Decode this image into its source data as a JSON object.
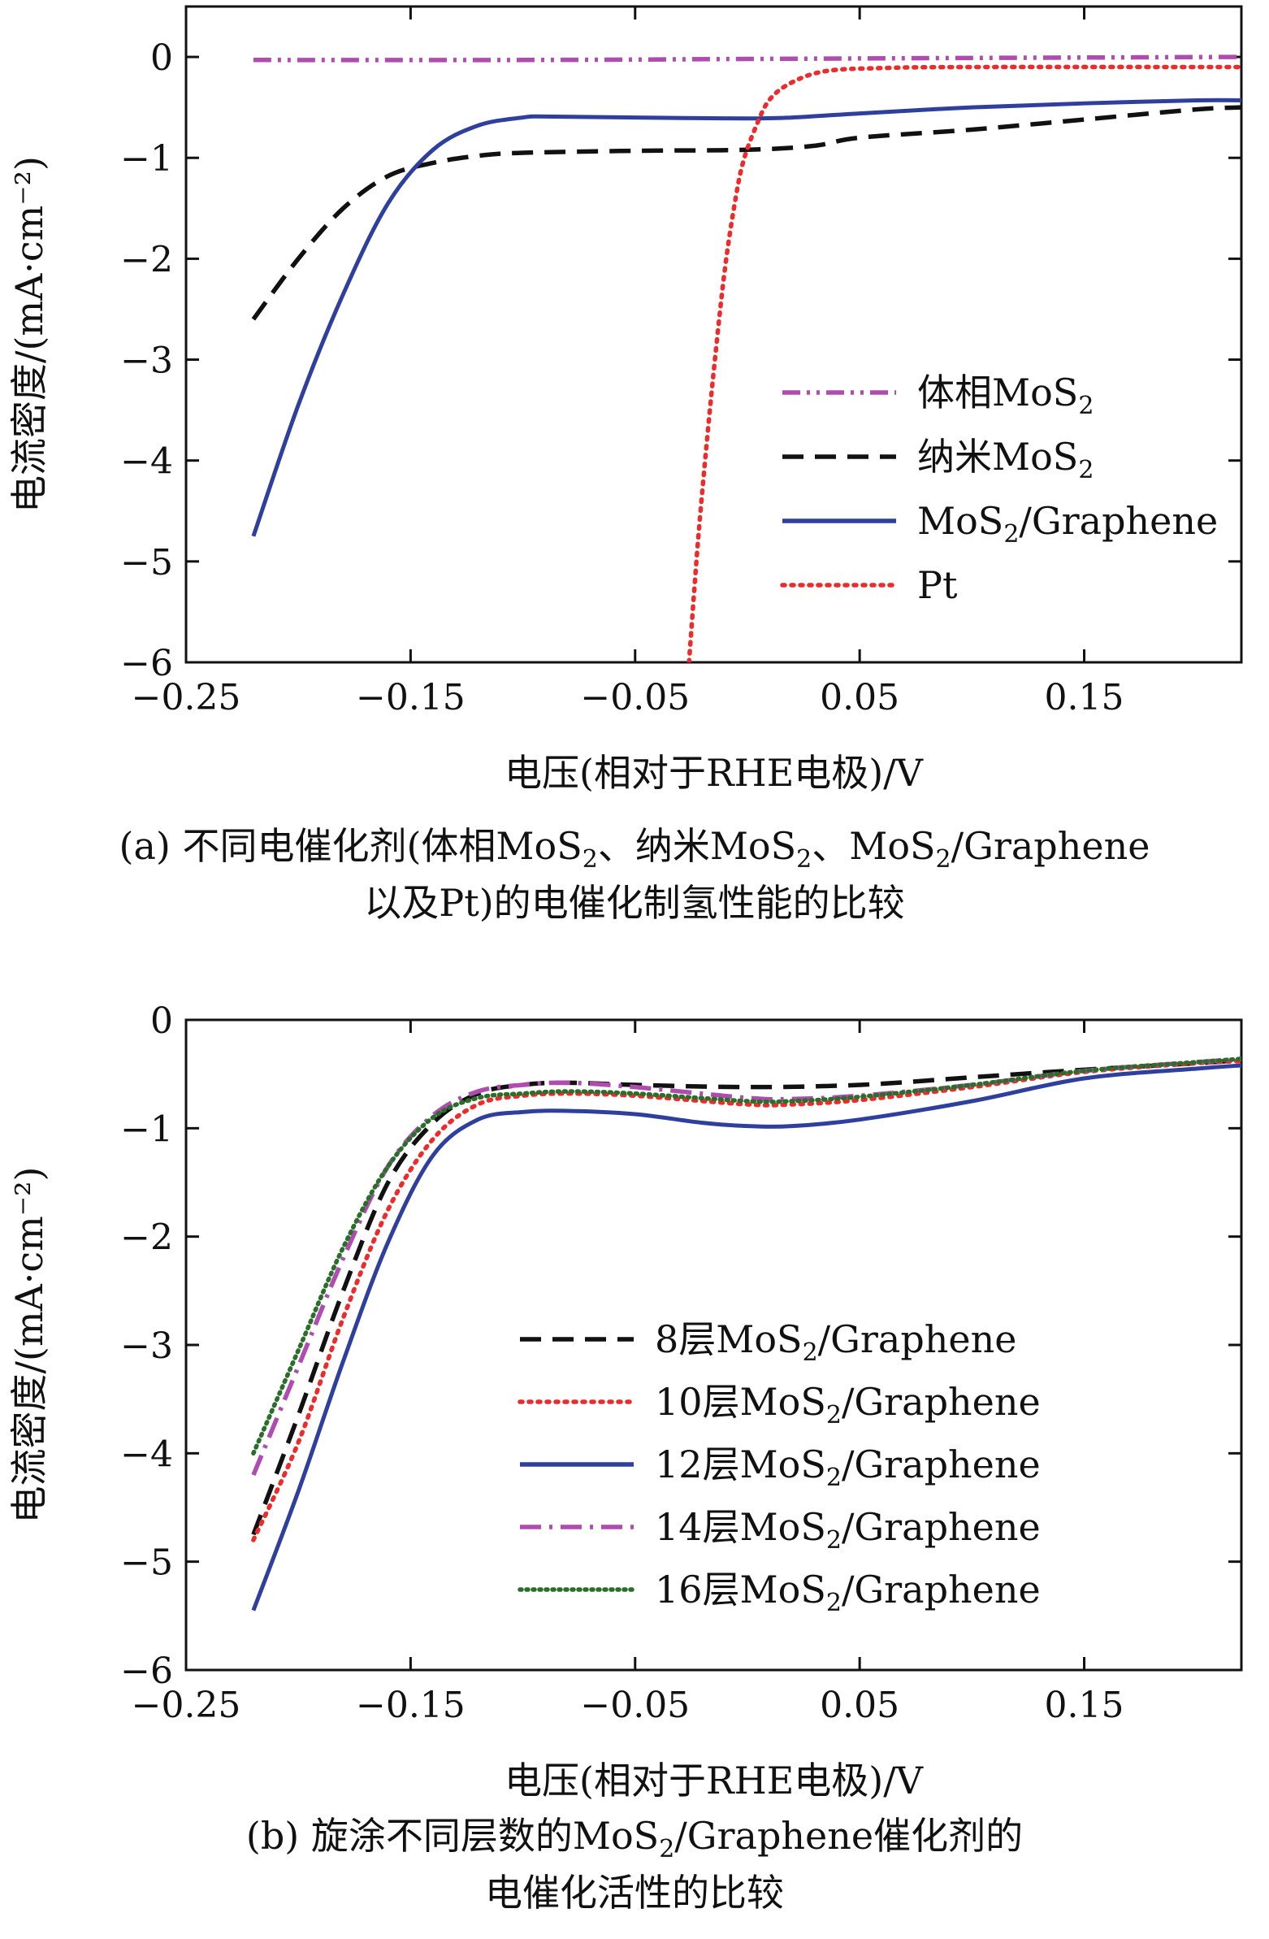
{
  "chart_data": [
    {
      "id": "a",
      "type": "line",
      "xlabel": "电压(相对于RHE电极)/V",
      "ylabel": "电流密度/(mA·cm⁻²)",
      "xlim": [
        -0.25,
        0.22
      ],
      "ylim": [
        -6,
        0.5
      ],
      "xticks": [
        -0.25,
        -0.15,
        -0.05,
        0.05,
        0.15
      ],
      "xtick_labels": [
        "−0.25",
        "−0.15",
        "−0.05",
        "0.05",
        "0.15"
      ],
      "yticks": [
        0,
        -1,
        -2,
        -3,
        -4,
        -5,
        -6
      ],
      "ytick_labels": [
        "0",
        "−1",
        "−2",
        "−3",
        "−4",
        "−5",
        "−6"
      ],
      "legend_position": "lower-right",
      "caption_line1": "(a) 不同电催化剂(体相MoS",
      "caption_mid1": "、纳米MoS",
      "caption_mid2": "、MoS",
      "caption_end": "/Graphene",
      "caption_sub": "2",
      "caption_line2": "以及Pt)的电催化制氢性能的比较",
      "series": [
        {
          "name": "体相MoS",
          "sub": "2",
          "color": "#b04cb0",
          "dash": "dashdotdot",
          "x": [
            -0.22,
            -0.1,
            0.0,
            0.1,
            0.22
          ],
          "y": [
            -0.03,
            -0.03,
            -0.02,
            -0.01,
            0.0
          ]
        },
        {
          "name": "纳米MoS",
          "sub": "2",
          "color": "#111111",
          "dash": "dash",
          "x": [
            -0.22,
            -0.2,
            -0.18,
            -0.16,
            -0.14,
            -0.12,
            -0.1,
            -0.05,
            0.0,
            0.03,
            0.05,
            0.1,
            0.15,
            0.2,
            0.22
          ],
          "y": [
            -2.6,
            -2.0,
            -1.5,
            -1.18,
            -1.05,
            -0.98,
            -0.95,
            -0.93,
            -0.92,
            -0.88,
            -0.8,
            -0.72,
            -0.62,
            -0.52,
            -0.5
          ]
        },
        {
          "name": "MoS",
          "sub": "2",
          "suffix": "/Graphene",
          "color": "#2e3f9e",
          "dash": "solid",
          "x": [
            -0.22,
            -0.2,
            -0.18,
            -0.16,
            -0.14,
            -0.12,
            -0.1,
            -0.09,
            -0.05,
            0.0,
            0.02,
            0.05,
            0.1,
            0.15,
            0.2,
            0.22
          ],
          "y": [
            -4.75,
            -3.45,
            -2.35,
            -1.45,
            -0.92,
            -0.68,
            -0.6,
            -0.59,
            -0.6,
            -0.61,
            -0.6,
            -0.56,
            -0.5,
            -0.46,
            -0.43,
            -0.43
          ]
        },
        {
          "name": "Pt",
          "color": "#ee2a2a",
          "dash": "dot",
          "x": [
            -0.026,
            -0.022,
            -0.018,
            -0.014,
            -0.01,
            -0.006,
            -0.002,
            0.004,
            0.01,
            0.02,
            0.035,
            0.06,
            0.1,
            0.22
          ],
          "y": [
            -6.0,
            -4.8,
            -3.8,
            -2.9,
            -2.1,
            -1.5,
            -1.05,
            -0.68,
            -0.42,
            -0.25,
            -0.14,
            -0.11,
            -0.1,
            -0.1
          ]
        }
      ]
    },
    {
      "id": "b",
      "type": "line",
      "xlabel": "电压(相对于RHE电极)/V",
      "ylabel": "电流密度/(mA·cm⁻²)",
      "xlim": [
        -0.25,
        0.22
      ],
      "ylim": [
        -6,
        0
      ],
      "xticks": [
        -0.25,
        -0.15,
        -0.05,
        0.05,
        0.15
      ],
      "xtick_labels": [
        "−0.25",
        "−0.15",
        "−0.05",
        "0.05",
        "0.15"
      ],
      "yticks": [
        0,
        -1,
        -2,
        -3,
        -4,
        -5,
        -6
      ],
      "ytick_labels": [
        "0",
        "−1",
        "−2",
        "−3",
        "−4",
        "−5",
        "−6"
      ],
      "legend_position": "lower-right",
      "caption_line1": "(b) 旋涂不同层数的MoS",
      "caption_end": "/Graphene催化剂的",
      "caption_sub": "2",
      "caption_line2": "电催化活性的比较",
      "series": [
        {
          "name": "8层MoS",
          "sub": "2",
          "suffix": "/Graphene",
          "color": "#111111",
          "dash": "dash",
          "x": [
            -0.22,
            -0.2,
            -0.18,
            -0.16,
            -0.14,
            -0.12,
            -0.1,
            -0.08,
            -0.05,
            0.0,
            0.05,
            0.1,
            0.15,
            0.2,
            0.22
          ],
          "y": [
            -4.75,
            -3.65,
            -2.5,
            -1.5,
            -0.95,
            -0.68,
            -0.6,
            -0.58,
            -0.6,
            -0.62,
            -0.6,
            -0.53,
            -0.46,
            -0.4,
            -0.37
          ]
        },
        {
          "name": "10层MoS",
          "sub": "2",
          "suffix": "/Graphene",
          "color": "#ee2a2a",
          "dash": "dot",
          "x": [
            -0.22,
            -0.2,
            -0.18,
            -0.16,
            -0.14,
            -0.12,
            -0.1,
            -0.08,
            -0.05,
            0.0,
            0.02,
            0.05,
            0.1,
            0.15,
            0.2,
            0.22
          ],
          "y": [
            -4.8,
            -3.9,
            -2.75,
            -1.75,
            -1.1,
            -0.78,
            -0.7,
            -0.68,
            -0.7,
            -0.78,
            -0.78,
            -0.74,
            -0.62,
            -0.48,
            -0.4,
            -0.38
          ]
        },
        {
          "name": "12层MoS",
          "sub": "2",
          "suffix": "/Graphene",
          "color": "#2e3f9e",
          "dash": "solid",
          "x": [
            -0.22,
            -0.2,
            -0.18,
            -0.16,
            -0.14,
            -0.12,
            -0.1,
            -0.08,
            -0.05,
            -0.02,
            0.0,
            0.02,
            0.05,
            0.1,
            0.15,
            0.2,
            0.22
          ],
          "y": [
            -5.45,
            -4.35,
            -3.15,
            -2.05,
            -1.25,
            -0.92,
            -0.85,
            -0.84,
            -0.87,
            -0.95,
            -0.98,
            -0.98,
            -0.92,
            -0.75,
            -0.54,
            -0.45,
            -0.42
          ]
        },
        {
          "name": "14层MoS",
          "sub": "2",
          "suffix": "/Graphene",
          "color": "#b04cb0",
          "dash": "dashdot",
          "x": [
            -0.22,
            -0.2,
            -0.18,
            -0.16,
            -0.14,
            -0.12,
            -0.1,
            -0.08,
            -0.05,
            0.0,
            0.02,
            0.05,
            0.1,
            0.15,
            0.2,
            0.22
          ],
          "y": [
            -4.2,
            -3.2,
            -2.2,
            -1.35,
            -0.88,
            -0.66,
            -0.6,
            -0.58,
            -0.62,
            -0.72,
            -0.73,
            -0.7,
            -0.6,
            -0.47,
            -0.39,
            -0.36
          ]
        },
        {
          "name": "16层MoS",
          "sub": "2",
          "suffix": "/Graphene",
          "color": "#2a6e2a",
          "dash": "finedot",
          "x": [
            -0.22,
            -0.2,
            -0.18,
            -0.16,
            -0.14,
            -0.12,
            -0.1,
            -0.08,
            -0.05,
            0.0,
            0.02,
            0.05,
            0.1,
            0.15,
            0.2,
            0.22
          ],
          "y": [
            -4.0,
            -3.05,
            -2.1,
            -1.35,
            -0.9,
            -0.72,
            -0.68,
            -0.66,
            -0.68,
            -0.75,
            -0.75,
            -0.71,
            -0.6,
            -0.47,
            -0.39,
            -0.36
          ]
        }
      ]
    }
  ]
}
